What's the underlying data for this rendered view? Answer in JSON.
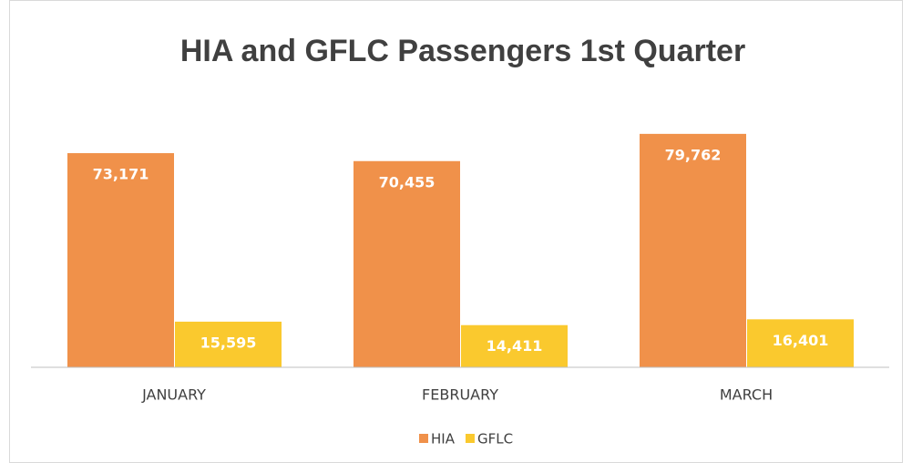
{
  "chart_data": {
    "type": "bar",
    "title": "HIA and GFLC Passengers 1st Quarter",
    "categories": [
      "JANUARY",
      "FEBRUARY",
      "MARCH"
    ],
    "series": [
      {
        "name": "HIA",
        "color": "#f0914a",
        "values": [
          73171,
          70455,
          79762
        ],
        "value_labels": [
          "73,171",
          "70,455",
          "79,762"
        ]
      },
      {
        "name": "GFLC",
        "color": "#fac92e",
        "values": [
          15595,
          14411,
          16401
        ],
        "value_labels": [
          "15,595",
          "14,411",
          "16,401"
        ]
      }
    ],
    "ylim": [
      0,
      90000
    ],
    "legend": "bottom"
  }
}
